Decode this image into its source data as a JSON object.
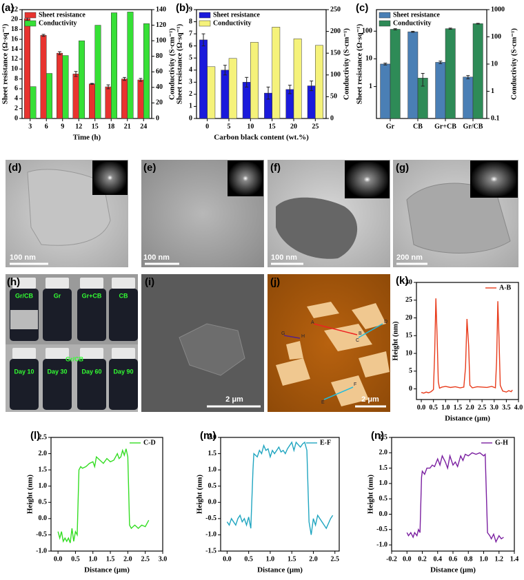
{
  "chart_data": [
    {
      "type": "bar",
      "panel": "(a)",
      "xlabel": "Time (h)",
      "ylabel": "Sheet resistance (Ω·sq⁻¹)",
      "y2label": "Conductivity (S·cm⁻¹)",
      "categories": [
        "3",
        "6",
        "9",
        "12",
        "15",
        "18",
        "21",
        "24"
      ],
      "series": [
        {
          "name": "Sheet resistance",
          "color": "#e8332f",
          "values": [
            20.2,
            16.8,
            13.2,
            9.0,
            7.0,
            6.4,
            8.0,
            7.8
          ],
          "errors": [
            0.4,
            0.2,
            0.3,
            0.5,
            0.1,
            0.4,
            0.3,
            0.3
          ]
        },
        {
          "name": "Conductivity",
          "color": "#36e036",
          "axis": "y2",
          "values": [
            41,
            58,
            81,
            100,
            120,
            136,
            137,
            122
          ]
        }
      ],
      "ylim": [
        0,
        22
      ],
      "yticks": [
        0,
        2,
        4,
        6,
        8,
        10,
        12,
        14,
        16,
        18,
        20,
        22
      ],
      "y2lim": [
        0,
        140
      ],
      "y2ticks": [
        0,
        20,
        40,
        60,
        80,
        100,
        120,
        140
      ],
      "legend": "upper left"
    },
    {
      "type": "bar",
      "panel": "(b)",
      "xlabel": "Carbon black content (wt.%)",
      "ylabel": "Sheet resistance (Ω·sq⁻¹)",
      "y2label": "Conductivity (S·cm⁻¹)",
      "categories": [
        "0",
        "5",
        "10",
        "15",
        "20",
        "25"
      ],
      "series": [
        {
          "name": "Sheet resistance",
          "color": "#1a1adb",
          "values": [
            6.5,
            4.0,
            3.0,
            2.1,
            2.4,
            2.7
          ],
          "errors": [
            0.5,
            0.4,
            0.4,
            0.5,
            0.35,
            0.4
          ]
        },
        {
          "name": "Conductivity",
          "color": "#f5f27a",
          "axis": "y2",
          "values": [
            119,
            138,
            175,
            210,
            183,
            168
          ]
        }
      ],
      "ylim": [
        0,
        9
      ],
      "yticks": [
        0,
        1,
        2,
        3,
        4,
        5,
        6,
        7,
        8,
        9
      ],
      "y2lim": [
        0,
        250
      ],
      "y2ticks": [
        0,
        50,
        100,
        150,
        200,
        250
      ],
      "legend": "upper left"
    },
    {
      "type": "bar",
      "panel": "(c)",
      "ylabel": "Sheet resistance (Ω·sq⁻¹)",
      "y2label": "Conductivity (S·cm⁻¹)",
      "log_scale": true,
      "categories": [
        "Gr",
        "CB",
        "Gr+CB",
        "Gr/CB"
      ],
      "series": [
        {
          "name": "Sheet resistance",
          "color": "#4a7fb5",
          "values": [
            6.5,
            95,
            7.5,
            2.2
          ],
          "errors": [
            0.5,
            4,
            0.8,
            0.3
          ]
        },
        {
          "name": "Conductivity",
          "color": "#2e8b57",
          "axis": "y2",
          "values": [
            190,
            3.05,
            200,
            305
          ],
          "errors": [
            10,
            1.5,
            10,
            10
          ]
        }
      ],
      "ylim": [
        0.07,
        600
      ],
      "yticks": [
        1,
        10,
        100
      ],
      "y2lim": [
        0.1,
        1000
      ],
      "y2ticks": [
        0.1,
        1,
        10,
        100,
        1000
      ],
      "legend": "upper left"
    },
    {
      "type": "line",
      "panel": "(k)",
      "xlabel": "Distance (μm)",
      "ylabel": "Height (nm)",
      "x": [
        0.0,
        0.1,
        0.2,
        0.3,
        0.4,
        0.5,
        0.55,
        0.6,
        0.65,
        0.7,
        0.75,
        0.85,
        1.0,
        1.2,
        1.4,
        1.6,
        1.75,
        1.82,
        1.88,
        1.95,
        2.0,
        2.1,
        2.3,
        2.5,
        2.7,
        2.9,
        3.05,
        3.1,
        3.15,
        3.2,
        3.25,
        3.35,
        3.5,
        3.6,
        3.7,
        3.75
      ],
      "series": [
        {
          "name": "A-B",
          "color": "#e83a1a",
          "values": [
            -1.0,
            -1.2,
            -0.9,
            -1.1,
            -0.8,
            -0.2,
            10,
            25.5,
            15,
            2,
            0.2,
            0.5,
            0.7,
            0.4,
            0.6,
            0.3,
            0.5,
            6,
            19.7,
            12,
            1,
            0.3,
            0.6,
            0.5,
            0.4,
            0.7,
            0.3,
            8,
            24.7,
            14,
            1,
            -0.6,
            -0.9,
            -0.5,
            -0.8,
            -0.3
          ]
        }
      ],
      "xlim": [
        -0.2,
        4.0
      ],
      "xticks": [
        {
          "value": 0,
          "label": "0.0"
        },
        0.5,
        {
          "value": 1,
          "label": "1.0"
        },
        1.5,
        {
          "value": 2,
          "label": "2.0"
        },
        2.5,
        {
          "value": 3,
          "label": "3.0"
        },
        3.5,
        {
          "value": 4,
          "label": "4.0"
        }
      ],
      "ylim": [
        -3,
        30
      ],
      "yticks": [
        0,
        5,
        10,
        15,
        20,
        25,
        30
      ],
      "legend": "upper right"
    },
    {
      "type": "line",
      "panel": "(l)",
      "xlabel": "Distance (μm)",
      "ylabel": "Height (nm)",
      "x": [
        0.0,
        0.05,
        0.1,
        0.15,
        0.2,
        0.25,
        0.3,
        0.35,
        0.4,
        0.45,
        0.5,
        0.55,
        0.6,
        0.65,
        0.7,
        0.8,
        0.9,
        1.0,
        1.05,
        1.1,
        1.2,
        1.3,
        1.4,
        1.5,
        1.6,
        1.7,
        1.75,
        1.8,
        1.85,
        1.9,
        1.95,
        2.0,
        2.05,
        2.1,
        2.2,
        2.3,
        2.4,
        2.5,
        2.6
      ],
      "series": [
        {
          "name": "C-D",
          "color": "#33dd22",
          "values": [
            -0.4,
            -0.6,
            -0.4,
            -0.7,
            -0.6,
            -0.7,
            -0.6,
            -0.75,
            -0.3,
            -0.7,
            -0.4,
            -0.5,
            1.5,
            1.6,
            1.55,
            1.6,
            1.7,
            1.75,
            1.6,
            1.9,
            1.8,
            1.7,
            1.85,
            1.75,
            1.8,
            2.0,
            1.85,
            1.9,
            2.1,
            1.95,
            2.15,
            1.9,
            -0.2,
            -0.3,
            -0.2,
            -0.3,
            -0.2,
            -0.25,
            -0.05
          ]
        }
      ],
      "xlim": [
        -0.2,
        3.0
      ],
      "xticks": [
        {
          "value": 0,
          "label": "0.0"
        },
        0.5,
        {
          "value": 1,
          "label": "1.0"
        },
        1.5,
        {
          "value": 2,
          "label": "2.0"
        },
        2.5,
        {
          "value": 3,
          "label": "3.0"
        }
      ],
      "ylim": [
        -1.0,
        2.5
      ],
      "yticks": [
        {
          "value": -1,
          "label": "-1.0"
        },
        -0.5,
        {
          "value": 0,
          "label": "0.0"
        },
        0.5,
        {
          "value": 1,
          "label": "1.0"
        },
        1.5,
        {
          "value": 2,
          "label": "2.0"
        },
        2.5
      ],
      "legend": "upper right"
    },
    {
      "type": "line",
      "panel": "(m)",
      "xlabel": "Distance (μm)",
      "ylabel": "Height (nm)",
      "x": [
        0.0,
        0.05,
        0.1,
        0.15,
        0.2,
        0.25,
        0.3,
        0.35,
        0.4,
        0.45,
        0.5,
        0.55,
        0.6,
        0.62,
        0.7,
        0.75,
        0.8,
        0.85,
        0.9,
        0.95,
        1.0,
        1.05,
        1.1,
        1.2,
        1.25,
        1.3,
        1.35,
        1.4,
        1.5,
        1.55,
        1.6,
        1.7,
        1.75,
        1.8,
        1.85,
        1.9,
        1.95,
        2.0,
        2.05,
        2.1,
        2.2,
        2.3,
        2.4,
        2.45
      ],
      "series": [
        {
          "name": "E-F",
          "color": "#1fa5c0",
          "values": [
            -0.6,
            -0.7,
            -0.5,
            -0.6,
            -0.7,
            -0.5,
            -0.4,
            -0.6,
            -0.5,
            -0.7,
            -0.45,
            -0.8,
            1.0,
            1.5,
            1.4,
            1.6,
            1.5,
            1.75,
            1.6,
            1.65,
            1.4,
            1.6,
            1.5,
            1.7,
            1.55,
            1.6,
            1.5,
            1.65,
            1.85,
            1.6,
            1.85,
            1.7,
            1.8,
            1.85,
            1.6,
            -0.6,
            -1.0,
            -0.5,
            -0.7,
            -0.4,
            -0.6,
            -0.8,
            -0.5,
            -0.4
          ]
        }
      ],
      "xlim": [
        -0.15,
        2.6
      ],
      "xticks": [
        {
          "value": 0,
          "label": "0.0"
        },
        0.5,
        {
          "value": 1,
          "label": "1.0"
        },
        1.5,
        {
          "value": 2,
          "label": "2.0"
        },
        2.5
      ],
      "ylim": [
        -1.5,
        2.0
      ],
      "yticks": [
        -1.5,
        {
          "value": -1,
          "label": "-1.0"
        },
        -0.5,
        {
          "value": 0,
          "label": "0.0"
        },
        0.5,
        {
          "value": 1,
          "label": "1.0"
        },
        1.5,
        {
          "value": 2,
          "label": "2.0"
        }
      ],
      "legend": "upper right"
    },
    {
      "type": "line",
      "panel": "(n)",
      "xlabel": "Distance (μm)",
      "ylabel": "Height (nm)",
      "x": [
        0.0,
        0.02,
        0.05,
        0.08,
        0.1,
        0.13,
        0.15,
        0.17,
        0.19,
        0.2,
        0.23,
        0.26,
        0.3,
        0.33,
        0.36,
        0.4,
        0.43,
        0.46,
        0.5,
        0.53,
        0.56,
        0.6,
        0.63,
        0.66,
        0.7,
        0.73,
        0.76,
        0.8,
        0.85,
        0.9,
        0.95,
        1.0,
        1.02,
        1.05,
        1.08,
        1.1,
        1.13,
        1.16,
        1.2,
        1.23,
        1.26
      ],
      "series": [
        {
          "name": "G-H",
          "color": "#7a1fa0",
          "values": [
            -0.6,
            -0.7,
            -0.6,
            -0.75,
            -0.6,
            -0.7,
            -0.5,
            -0.6,
            1.2,
            1.4,
            1.3,
            1.5,
            1.5,
            1.6,
            1.55,
            1.8,
            1.6,
            1.9,
            1.7,
            1.5,
            1.9,
            1.6,
            1.7,
            1.55,
            1.9,
            1.75,
            1.95,
            1.9,
            2.0,
            1.95,
            2.0,
            1.9,
            1.95,
            -0.6,
            -0.7,
            -0.8,
            -0.65,
            -0.9,
            -0.7,
            -0.8,
            -0.75
          ]
        }
      ],
      "xlim": [
        -0.2,
        1.4
      ],
      "xticks": [
        -0.2,
        {
          "value": 0,
          "label": "0.0"
        },
        0.2,
        0.4,
        0.6,
        0.8,
        {
          "value": 1,
          "label": "1.0"
        },
        1.2,
        1.4
      ],
      "ylim": [
        -1.2,
        2.5
      ],
      "yticks": [
        {
          "value": -1,
          "label": "-1.0"
        },
        -0.5,
        {
          "value": 0,
          "label": "0.0"
        },
        0.5,
        {
          "value": 1,
          "label": "1.0"
        },
        1.5,
        {
          "value": 2,
          "label": "2.0"
        },
        2.5
      ],
      "legend": "upper right"
    }
  ],
  "image_panels": [
    {
      "panel": "(d)",
      "scale": "100 nm"
    },
    {
      "panel": "(e)",
      "scale": "100 nm"
    },
    {
      "panel": "(f)",
      "scale": "100 nm"
    },
    {
      "panel": "(g)",
      "scale": "200 nm"
    },
    {
      "panel": "(h)",
      "labels": [
        "Gr/CB",
        "Gr",
        "Gr+CB",
        "CB",
        "Gr/CB",
        "Day 10",
        "Day 30",
        "Day 60",
        "Day 90"
      ]
    },
    {
      "panel": "(i)",
      "scale": "2 μm"
    },
    {
      "panel": "(j)",
      "scale": "2 μm",
      "labels": [
        "A",
        "B",
        "C",
        "D",
        "E",
        "F",
        "G",
        "H"
      ]
    }
  ]
}
